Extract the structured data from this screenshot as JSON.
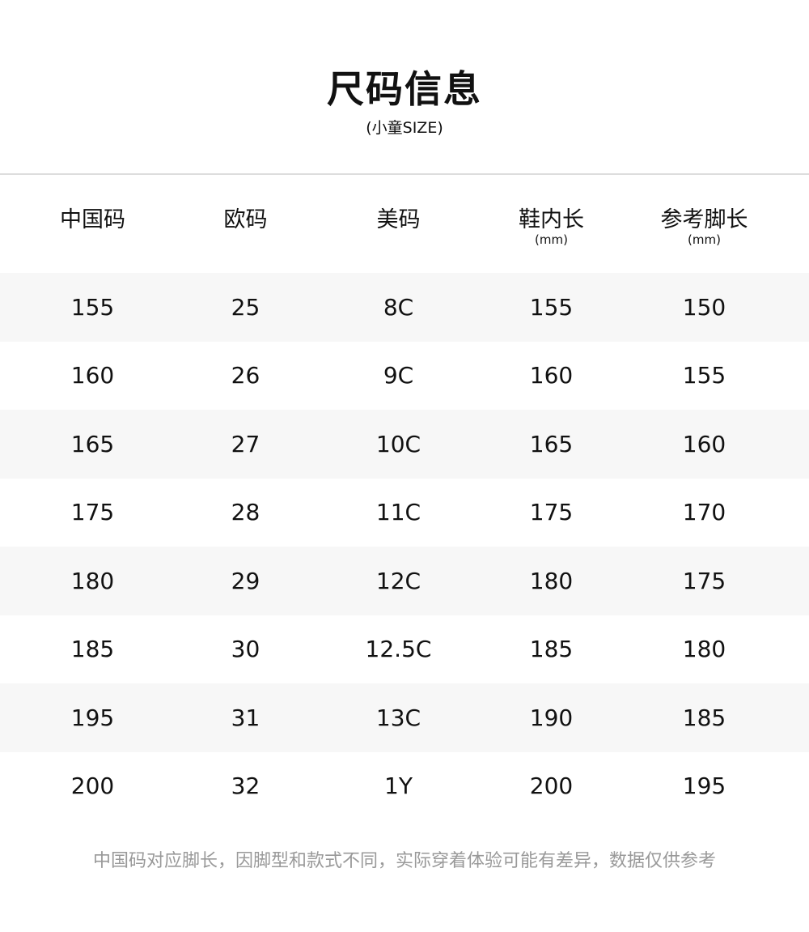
{
  "header": {
    "title": "尺码信息",
    "subtitle": "(小童SIZE)"
  },
  "table": {
    "columns": [
      {
        "label": "中国码",
        "unit": ""
      },
      {
        "label": "欧码",
        "unit": ""
      },
      {
        "label": "美码",
        "unit": ""
      },
      {
        "label": "鞋内长",
        "unit": "(mm)"
      },
      {
        "label": "参考脚长",
        "unit": "(mm)"
      }
    ],
    "rows": [
      [
        "155",
        "25",
        "8C",
        "155",
        "150"
      ],
      [
        "160",
        "26",
        "9C",
        "160",
        "155"
      ],
      [
        "165",
        "27",
        "10C",
        "165",
        "160"
      ],
      [
        "175",
        "28",
        "11C",
        "175",
        "170"
      ],
      [
        "180",
        "29",
        "12C",
        "180",
        "175"
      ],
      [
        "185",
        "30",
        "12.5C",
        "185",
        "180"
      ],
      [
        "195",
        "31",
        "13C",
        "190",
        "185"
      ],
      [
        "200",
        "32",
        "1Y",
        "200",
        "195"
      ]
    ]
  },
  "footer": {
    "note": "中国码对应脚长，因脚型和款式不同，实际穿着体验可能有差异，数据仅供参考"
  },
  "colors": {
    "row_alt": "#f7f7f7",
    "note_text": "#999999"
  }
}
